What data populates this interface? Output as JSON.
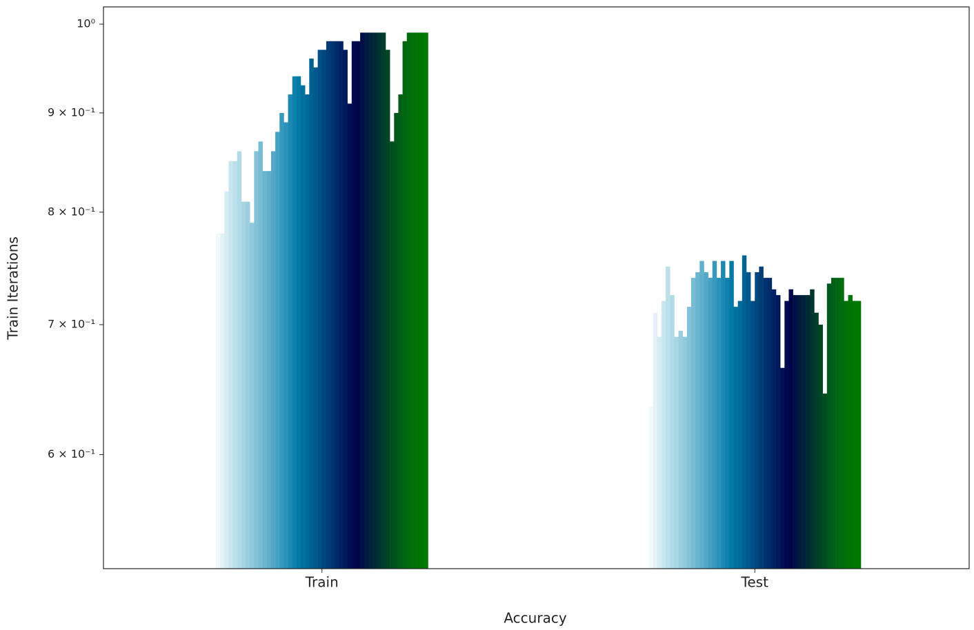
{
  "chart_data": {
    "type": "bar",
    "xlabel": "Accuracy",
    "ylabel": "Train Iterations",
    "log_y": true,
    "grid": false,
    "categories": [
      "Train",
      "Test"
    ],
    "ylim": [
      0.524,
      1.0207
    ],
    "yticks": [
      {
        "value": 0.6,
        "label": "6 × 10⁻¹"
      },
      {
        "value": 0.7,
        "label": "7 × 10⁻¹"
      },
      {
        "value": 0.8,
        "label": "8 × 10⁻¹"
      },
      {
        "value": 0.9,
        "label": "9 × 10⁻¹"
      },
      {
        "value": 1,
        "label": "10⁰"
      }
    ],
    "series": [
      {
        "color": "#f2f9fb",
        "values": [
          0.78,
          0.635
        ]
      },
      {
        "color": "#e4f2f7",
        "values": [
          0.78,
          0.71
        ]
      },
      {
        "color": "#d6ecf3",
        "values": [
          0.82,
          0.69
        ]
      },
      {
        "color": "#c9e6ef",
        "values": [
          0.85,
          0.72
        ]
      },
      {
        "color": "#bce0ea",
        "values": [
          0.85,
          0.75
        ]
      },
      {
        "color": "#b0dae6",
        "values": [
          0.86,
          0.725
        ]
      },
      {
        "color": "#a8d5e2",
        "values": [
          0.81,
          0.69
        ]
      },
      {
        "color": "#9ccee0",
        "values": [
          0.81,
          0.695
        ]
      },
      {
        "color": "#90c8dc",
        "values": [
          0.79,
          0.69
        ]
      },
      {
        "color": "#84c2d8",
        "values": [
          0.86,
          0.715
        ]
      },
      {
        "color": "#78bcd4",
        "values": [
          0.87,
          0.74
        ]
      },
      {
        "color": "#6cb5d0",
        "values": [
          0.84,
          0.745
        ]
      },
      {
        "color": "#60afcc",
        "values": [
          0.84,
          0.755
        ]
      },
      {
        "color": "#53a8c8",
        "values": [
          0.86,
          0.745
        ]
      },
      {
        "color": "#46a0c3",
        "values": [
          0.88,
          0.74
        ]
      },
      {
        "color": "#3899be",
        "values": [
          0.9,
          0.755
        ]
      },
      {
        "color": "#2a91b9",
        "values": [
          0.89,
          0.74
        ]
      },
      {
        "color": "#1c89b3",
        "values": [
          0.92,
          0.755
        ]
      },
      {
        "color": "#0e81ad",
        "values": [
          0.94,
          0.74
        ]
      },
      {
        "color": "#047aa6",
        "values": [
          0.94,
          0.755
        ]
      },
      {
        "color": "#00729f",
        "values": [
          0.93,
          0.715
        ]
      },
      {
        "color": "#006a99",
        "values": [
          0.92,
          0.72
        ]
      },
      {
        "color": "#006193",
        "values": [
          0.96,
          0.76
        ]
      },
      {
        "color": "#00588c",
        "values": [
          0.95,
          0.745
        ]
      },
      {
        "color": "#004f85",
        "values": [
          0.97,
          0.72
        ]
      },
      {
        "color": "#00467e",
        "values": [
          0.97,
          0.745
        ]
      },
      {
        "color": "#003d77",
        "values": [
          0.98,
          0.75
        ]
      },
      {
        "color": "#003470",
        "values": [
          0.98,
          0.74
        ]
      },
      {
        "color": "#002b69",
        "values": [
          0.98,
          0.74
        ]
      },
      {
        "color": "#002262",
        "values": [
          0.98,
          0.73
        ]
      },
      {
        "color": "#00195b",
        "values": [
          0.97,
          0.725
        ]
      },
      {
        "color": "#001055",
        "values": [
          0.91,
          0.665
        ]
      },
      {
        "color": "#000850",
        "values": [
          0.98,
          0.72
        ]
      },
      {
        "color": "#00054a",
        "values": [
          0.98,
          0.73
        ]
      },
      {
        "color": "#000f45",
        "values": [
          0.99,
          0.725
        ]
      },
      {
        "color": "#00193f",
        "values": [
          0.99,
          0.725
        ]
      },
      {
        "color": "#00223a",
        "values": [
          0.99,
          0.725
        ]
      },
      {
        "color": "#002b35",
        "values": [
          0.99,
          0.725
        ]
      },
      {
        "color": "#00342f",
        "values": [
          0.99,
          0.73
        ]
      },
      {
        "color": "#003d2a",
        "values": [
          0.99,
          0.71
        ]
      },
      {
        "color": "#004625",
        "values": [
          0.97,
          0.7
        ]
      },
      {
        "color": "#004f20",
        "values": [
          0.87,
          0.645
        ]
      },
      {
        "color": "#00571b",
        "values": [
          0.9,
          0.735
        ]
      },
      {
        "color": "#005f16",
        "values": [
          0.92,
          0.74
        ]
      },
      {
        "color": "#006611",
        "values": [
          0.98,
          0.74
        ]
      },
      {
        "color": "#006c0d",
        "values": [
          0.99,
          0.74
        ]
      },
      {
        "color": "#007009",
        "values": [
          0.99,
          0.72
        ]
      },
      {
        "color": "#007306",
        "values": [
          0.99,
          0.725
        ]
      },
      {
        "color": "#007603",
        "values": [
          0.99,
          0.72
        ]
      },
      {
        "color": "#007800",
        "values": [
          0.99,
          0.72
        ]
      }
    ]
  }
}
